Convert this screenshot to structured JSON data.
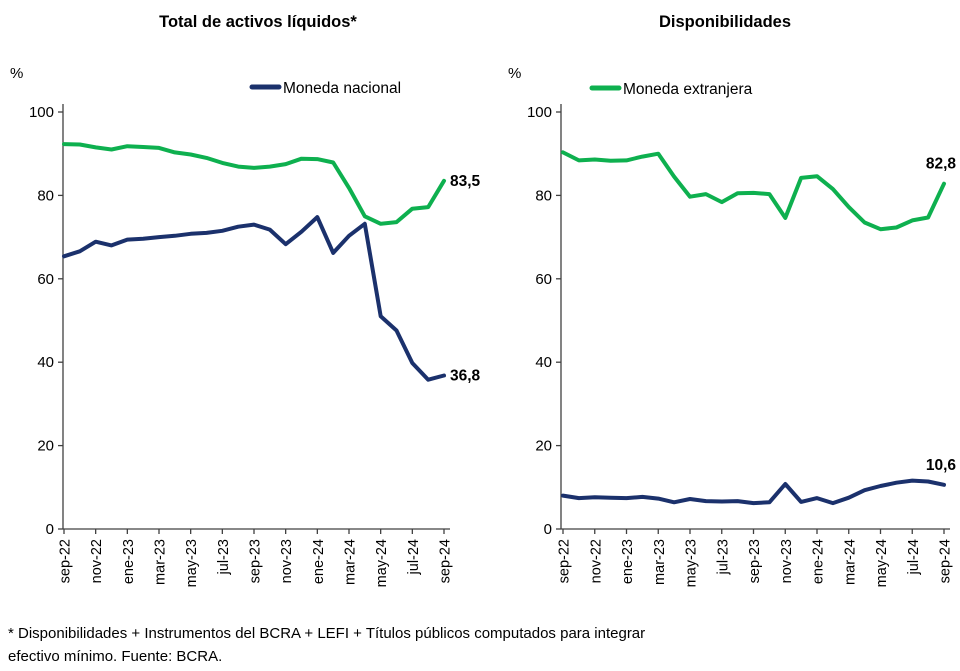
{
  "colors": {
    "national": "#1b316c",
    "foreign": "#0eb04f",
    "axis": "#404040",
    "text": "#000000"
  },
  "footnote": {
    "line1": "* Disponibilidades + Instrumentos del BCRA + LEFI + Títulos públicos computados para integrar",
    "line2": "efectivo mínimo. Fuente: BCRA."
  },
  "chart_data": [
    {
      "type": "line",
      "title": "Total de activos líquidos*",
      "unit_label": "%",
      "legend_label": "Moneda nacional",
      "legend_color_key": "national",
      "ylim": [
        0,
        100
      ],
      "yticks": [
        0,
        20,
        40,
        60,
        80,
        100
      ],
      "grid": false,
      "x": [
        "sep-22",
        "oct-22",
        "nov-22",
        "dic-22",
        "ene-23",
        "feb-23",
        "mar-23",
        "abr-23",
        "may-23",
        "jun-23",
        "jul-23",
        "ago-23",
        "sep-23",
        "oct-23",
        "nov-23",
        "dic-23",
        "ene-24",
        "feb-24",
        "mar-24",
        "abr-24",
        "may-24",
        "jun-24",
        "jul-24",
        "ago-24",
        "sep-24"
      ],
      "x_ticks_shown": [
        "sep-22",
        "nov-22",
        "ene-23",
        "mar-23",
        "may-23",
        "jul-23",
        "sep-23",
        "nov-23",
        "ene-24",
        "mar-24",
        "may-24",
        "jul-24",
        "sep-24"
      ],
      "series": [
        {
          "name": "Moneda extranjera",
          "color_key": "foreign",
          "end_label": "83,5",
          "values": [
            92.3,
            92.2,
            91.5,
            91.0,
            91.8,
            91.6,
            91.4,
            90.3,
            89.8,
            89.0,
            87.8,
            86.9,
            86.6,
            86.9,
            87.5,
            88.8,
            88.7,
            87.9,
            81.8,
            75.0,
            73.2,
            73.6,
            76.8,
            77.2,
            83.5
          ]
        },
        {
          "name": "Moneda nacional",
          "color_key": "national",
          "end_label": "36,8",
          "values": [
            65.4,
            66.6,
            68.9,
            68.0,
            69.4,
            69.6,
            70.0,
            70.3,
            70.8,
            71.0,
            71.5,
            72.5,
            73.0,
            71.8,
            68.3,
            71.3,
            74.8,
            66.2,
            70.3,
            73.2,
            51.0,
            47.6,
            39.8,
            35.8,
            36.8
          ]
        }
      ]
    },
    {
      "type": "line",
      "title": "Disponibilidades",
      "unit_label": "%",
      "legend_label": "Moneda extranjera",
      "legend_color_key": "foreign",
      "ylim": [
        0,
        100
      ],
      "yticks": [
        0,
        20,
        40,
        60,
        80,
        100
      ],
      "grid": false,
      "x": [
        "sep-22",
        "oct-22",
        "nov-22",
        "dic-22",
        "ene-23",
        "feb-23",
        "mar-23",
        "abr-23",
        "may-23",
        "jun-23",
        "jul-23",
        "ago-23",
        "sep-23",
        "oct-23",
        "nov-23",
        "dic-23",
        "ene-24",
        "feb-24",
        "mar-24",
        "abr-24",
        "may-24",
        "jun-24",
        "jul-24",
        "ago-24",
        "sep-24"
      ],
      "x_ticks_shown": [
        "sep-22",
        "nov-22",
        "ene-23",
        "mar-23",
        "may-23",
        "jul-23",
        "sep-23",
        "nov-23",
        "ene-24",
        "mar-24",
        "may-24",
        "jul-24",
        "sep-24"
      ],
      "series": [
        {
          "name": "Moneda extranjera",
          "color_key": "foreign",
          "end_label": "82,8",
          "values": [
            90.3,
            88.4,
            88.6,
            88.3,
            88.4,
            89.3,
            90.0,
            84.5,
            79.7,
            80.3,
            78.4,
            80.5,
            80.6,
            80.3,
            74.6,
            84.2,
            84.6,
            81.5,
            77.2,
            73.5,
            71.9,
            72.3,
            74.0,
            74.7,
            82.8
          ]
        },
        {
          "name": "Moneda nacional",
          "color_key": "national",
          "end_label": "10,6",
          "values": [
            8.0,
            7.4,
            7.6,
            7.5,
            7.4,
            7.7,
            7.3,
            6.4,
            7.2,
            6.7,
            6.6,
            6.7,
            6.2,
            6.4,
            10.8,
            6.5,
            7.4,
            6.2,
            7.5,
            9.3,
            10.3,
            11.1,
            11.6,
            11.4,
            10.6
          ]
        }
      ]
    }
  ]
}
